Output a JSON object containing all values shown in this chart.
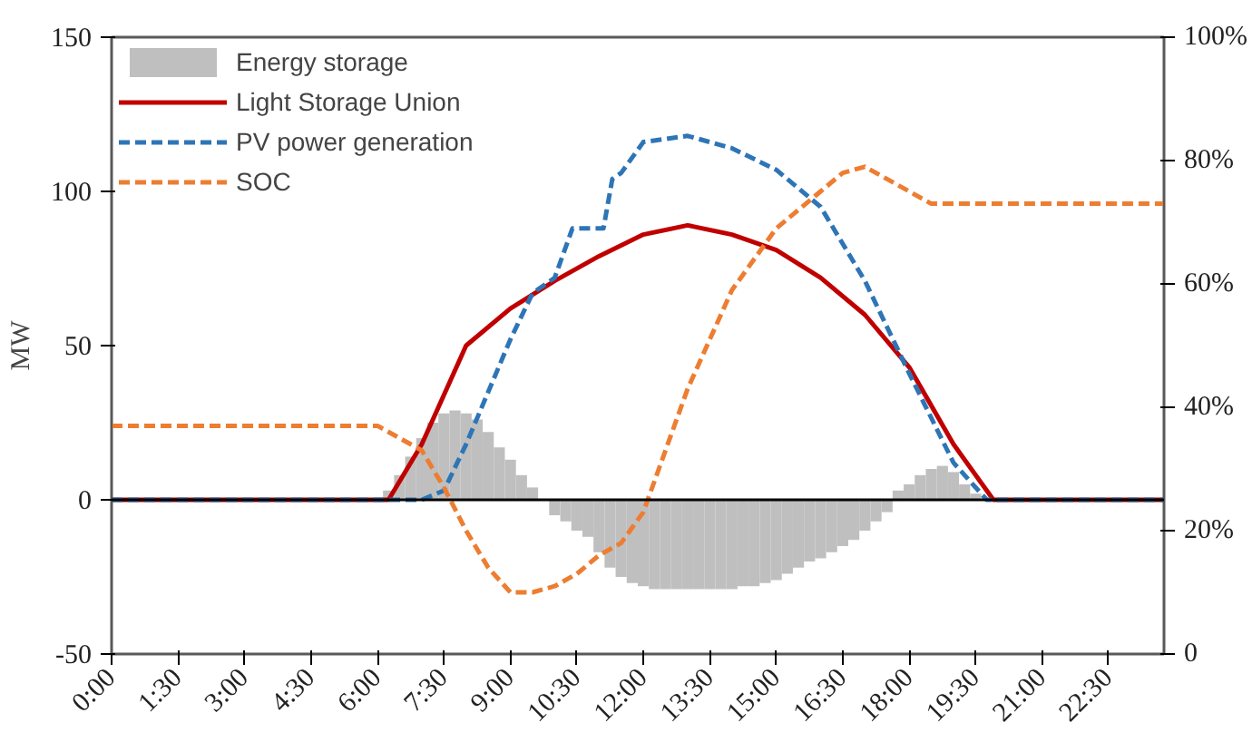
{
  "chart_data": {
    "type": "line",
    "ylabel": "MW",
    "xlim": [
      0,
      23.75
    ],
    "xticks": [
      {
        "value": 0,
        "label": "0:00"
      },
      {
        "value": 1.5,
        "label": "1:30"
      },
      {
        "value": 3,
        "label": "3:00"
      },
      {
        "value": 4.5,
        "label": "4:30"
      },
      {
        "value": 6,
        "label": "6:00"
      },
      {
        "value": 7.5,
        "label": "7:30"
      },
      {
        "value": 9,
        "label": "9:00"
      },
      {
        "value": 10.5,
        "label": "10:30"
      },
      {
        "value": 12,
        "label": "12:00"
      },
      {
        "value": 13.5,
        "label": "13:30"
      },
      {
        "value": 15,
        "label": "15:00"
      },
      {
        "value": 16.5,
        "label": "16:30"
      },
      {
        "value": 18,
        "label": "18:00"
      },
      {
        "value": 19.5,
        "label": "19:30"
      },
      {
        "value": 21,
        "label": "21:00"
      },
      {
        "value": 22.5,
        "label": "22:30"
      }
    ],
    "ylim": [
      -50,
      150
    ],
    "yticks": [
      -50,
      0,
      50,
      100,
      150
    ],
    "y2lim": [
      0,
      100
    ],
    "y2ticks": [
      {
        "value": 0,
        "label": "0"
      },
      {
        "value": 20,
        "label": "20%"
      },
      {
        "value": 40,
        "label": "40%"
      },
      {
        "value": 60,
        "label": "60%"
      },
      {
        "value": 80,
        "label": "80%"
      },
      {
        "value": 100,
        "label": "100%"
      }
    ],
    "legend": "top left",
    "grid": false,
    "ref_lines": [
      {
        "axis": "y",
        "value": 0,
        "color": "#000000"
      }
    ],
    "series": [
      {
        "name": "Energy storage",
        "type": "bar",
        "color": "#bfbfbf",
        "x": [
          6.25,
          6.5,
          6.75,
          7,
          7.25,
          7.5,
          7.75,
          8,
          8.25,
          8.5,
          8.75,
          9,
          9.25,
          9.5,
          9.75,
          10,
          10.25,
          10.5,
          10.75,
          11,
          11.25,
          11.5,
          11.75,
          12,
          12.25,
          12.5,
          12.75,
          13,
          13.25,
          13.5,
          13.75,
          14,
          14.25,
          14.5,
          14.75,
          15,
          15.25,
          15.5,
          15.75,
          16,
          16.25,
          16.5,
          16.75,
          17,
          17.25,
          17.5,
          17.75,
          18,
          18.25,
          18.5,
          18.75,
          19,
          19.25,
          19.5
        ],
        "values": [
          3,
          8,
          14,
          20,
          25,
          28,
          29,
          28,
          26,
          22,
          17,
          13,
          8,
          4,
          0,
          -5,
          -7,
          -10,
          -12,
          -17,
          -22,
          -25,
          -27,
          -28,
          -29,
          -29,
          -29,
          -29,
          -29,
          -29,
          -29,
          -29,
          -28,
          -28,
          -27,
          -26,
          -24,
          -22,
          -20,
          -19,
          -17,
          -15,
          -13,
          -10,
          -7,
          -4,
          3,
          5,
          8,
          10,
          11,
          9,
          5,
          2
        ]
      },
      {
        "name": "Light Storage Union",
        "color": "#c00000",
        "line_style": "solid",
        "x": [
          0,
          6.25,
          7,
          8,
          9,
          10,
          11,
          12,
          13,
          14,
          15,
          16,
          17,
          18,
          19,
          19.9,
          23.75
        ],
        "values": [
          0,
          0,
          18,
          50,
          62,
          71,
          79,
          86,
          89,
          86,
          81,
          72,
          60,
          43,
          18,
          0,
          0
        ]
      },
      {
        "name": "PV power generation",
        "color": "#2e75b6",
        "line_style": "dashed",
        "x": [
          0,
          7,
          7.5,
          8,
          8.5,
          9,
          9.5,
          10,
          10.2,
          10.4,
          11.1,
          11.3,
          11.5,
          12,
          13,
          14,
          15,
          16,
          17,
          18,
          19,
          19.75,
          23.75
        ],
        "values": [
          0,
          0,
          3,
          18,
          35,
          52,
          67,
          72,
          80,
          88,
          88,
          104,
          106,
          116,
          118,
          114,
          107,
          95,
          71,
          41,
          12,
          0,
          0
        ]
      },
      {
        "name": "SOC",
        "axis": "y2",
        "color": "#ed7d31",
        "line_style": "dashed",
        "x": [
          0,
          6,
          7,
          7.5,
          8,
          8.5,
          9,
          9.5,
          10,
          10.5,
          11,
          11.5,
          12,
          13,
          14,
          15,
          16,
          16.5,
          17,
          17.5,
          18,
          18.5,
          19,
          23.75
        ],
        "values": [
          37,
          37,
          33,
          27,
          20,
          14,
          10,
          10,
          11,
          13,
          16,
          18,
          23,
          43,
          59,
          69,
          75,
          78,
          79,
          77,
          75,
          73,
          73,
          73
        ]
      }
    ]
  }
}
